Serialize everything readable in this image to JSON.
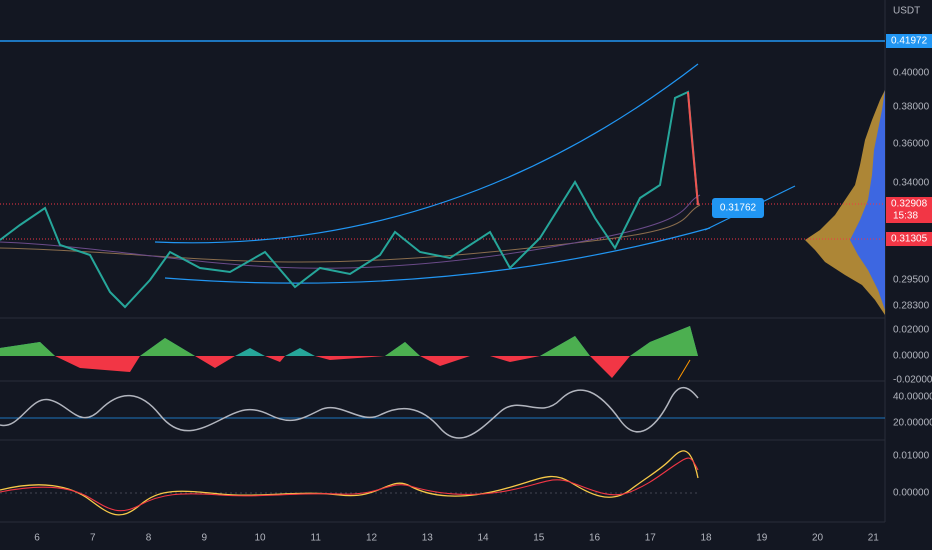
{
  "price_axis": {
    "currency": "USDT",
    "labels": [
      "0.40000",
      "0.38000",
      "0.36000",
      "0.34000",
      "0.29500",
      "0.28300"
    ]
  },
  "price_tags": {
    "level": "0.41972",
    "last": "0.32908",
    "countdown": "15:38",
    "support": "0.31305"
  },
  "callout": "0.31762",
  "pane1_axis": [
    "0.02000",
    "0.00000",
    "-0.02000"
  ],
  "pane2_axis": [
    "40.00000",
    "20.00000"
  ],
  "pane3_axis": [
    "0.01000",
    "0.00000"
  ],
  "time_axis": [
    "6",
    "7",
    "8",
    "9",
    "10",
    "11",
    "12",
    "13",
    "14",
    "15",
    "16",
    "17",
    "18",
    "19",
    "20",
    "21"
  ]
}
